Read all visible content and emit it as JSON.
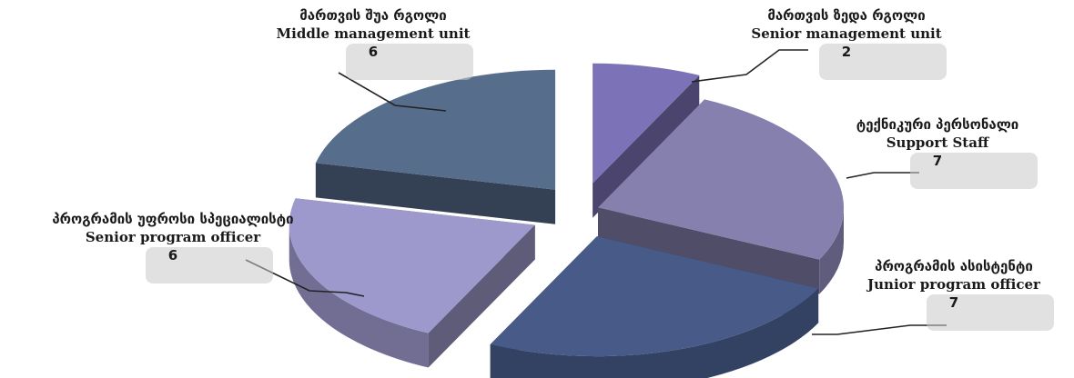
{
  "chart_data": {
    "type": "pie",
    "title": "",
    "style": "3d-exploded",
    "slices": [
      {
        "geo": "მართვის ზედა რგოლი",
        "label": "Senior management unit",
        "value": 2,
        "color": "#7b72b8"
      },
      {
        "geo": "ტექნიკური პერსონალი",
        "label": "Support Staff",
        "value": 7,
        "color": "#8580ad"
      },
      {
        "geo": "პროგრამის ასისტენტი",
        "label": "Junior program officer",
        "value": 7,
        "color": "#475a88"
      },
      {
        "geo": "პროგრამის უფროსი სპეციალისტი",
        "label": "Senior program officer",
        "value": 6,
        "color": "#9e99cc"
      },
      {
        "geo": "მართვის შუა რგოლი",
        "label": "Middle management unit",
        "value": 6,
        "color": "#566d8c"
      }
    ]
  }
}
